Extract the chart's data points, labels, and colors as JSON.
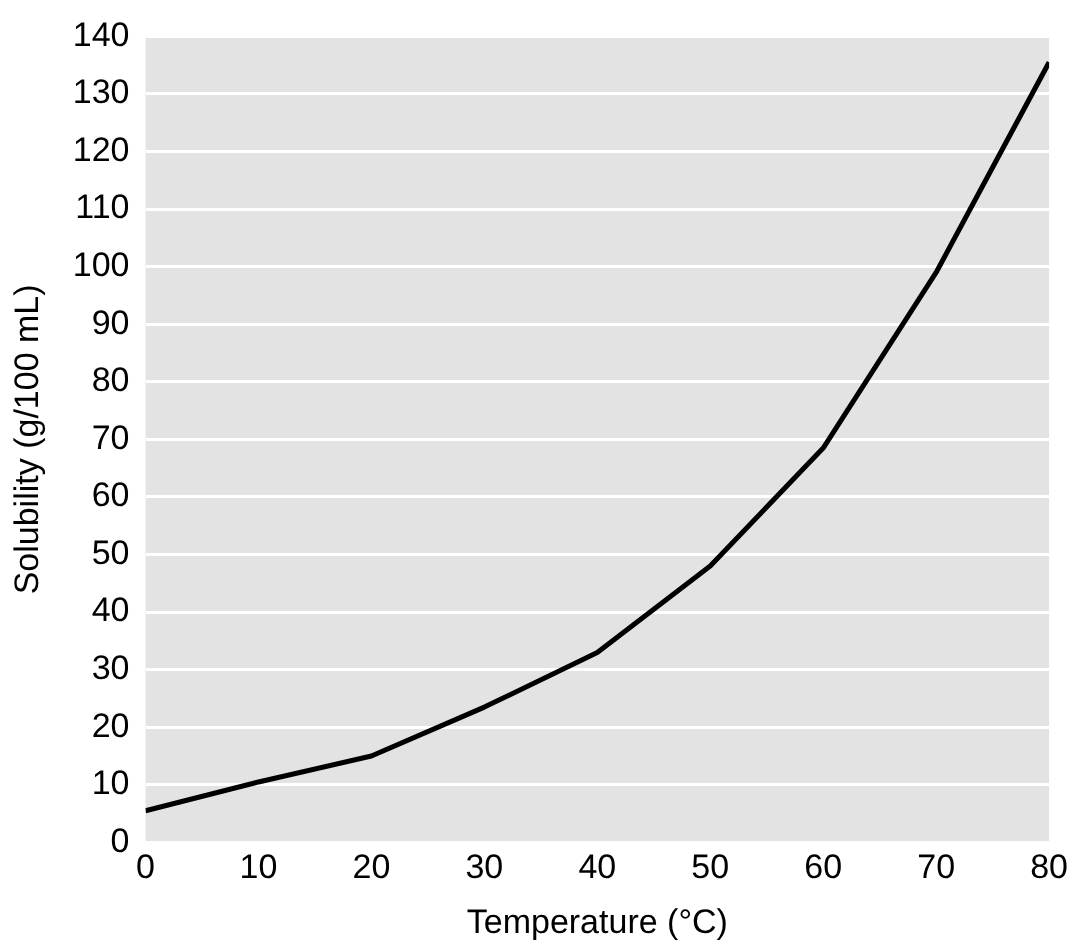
{
  "chart_data": {
    "type": "line",
    "xlabel": "Temperature (°C)",
    "ylabel": "Solubility (g/100 mL)",
    "x": [
      0,
      10,
      20,
      30,
      40,
      50,
      60,
      70,
      80
    ],
    "series": [
      {
        "color": "#000000",
        "values": [
          5.5,
          10.5,
          15,
          23.5,
          33,
          48,
          68.5,
          99,
          135.5
        ]
      }
    ],
    "xlim": [
      0,
      80
    ],
    "xticks": [
      0,
      10,
      20,
      30,
      40,
      50,
      60,
      70,
      80
    ],
    "ylim": [
      0,
      140
    ],
    "yticks": [
      0,
      10,
      20,
      30,
      40,
      50,
      60,
      70,
      80,
      90,
      100,
      110,
      120,
      130,
      140
    ],
    "grid": "y",
    "legend": false,
    "marker": "none",
    "line_style": "solid"
  }
}
